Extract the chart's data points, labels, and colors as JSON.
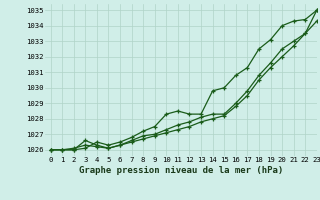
{
  "xlabel": "Graphe pression niveau de la mer (hPa)",
  "ylim": [
    1025.6,
    1035.4
  ],
  "xlim": [
    -0.5,
    23
  ],
  "yticks": [
    1026,
    1027,
    1028,
    1029,
    1030,
    1031,
    1032,
    1033,
    1034,
    1035
  ],
  "xticks": [
    0,
    1,
    2,
    3,
    4,
    5,
    6,
    7,
    8,
    9,
    10,
    11,
    12,
    13,
    14,
    15,
    16,
    17,
    18,
    19,
    20,
    21,
    22,
    23
  ],
  "background_color": "#d0eee8",
  "grid_color": "#b0d4c8",
  "line_color": "#1a5c1a",
  "series1": [
    1026.0,
    1026.0,
    1026.0,
    1026.1,
    1026.5,
    1026.3,
    1026.5,
    1026.8,
    1027.2,
    1027.5,
    1028.3,
    1028.5,
    1028.3,
    1028.3,
    1029.8,
    1030.0,
    1030.8,
    1031.3,
    1032.5,
    1033.1,
    1034.0,
    1034.3,
    1034.4,
    1035.0
  ],
  "series2": [
    1026.0,
    1026.0,
    1026.0,
    1026.6,
    1026.3,
    1026.1,
    1026.3,
    1026.6,
    1026.9,
    1027.0,
    1027.3,
    1027.6,
    1027.8,
    1028.1,
    1028.3,
    1028.3,
    1029.0,
    1029.8,
    1030.8,
    1031.6,
    1032.5,
    1033.0,
    1033.5,
    1034.3
  ],
  "series3": [
    1026.0,
    1026.0,
    1026.1,
    1026.3,
    1026.2,
    1026.1,
    1026.3,
    1026.5,
    1026.7,
    1026.9,
    1027.1,
    1027.3,
    1027.5,
    1027.8,
    1028.0,
    1028.2,
    1028.8,
    1029.5,
    1030.5,
    1031.3,
    1032.0,
    1032.7,
    1033.5,
    1035.0
  ]
}
